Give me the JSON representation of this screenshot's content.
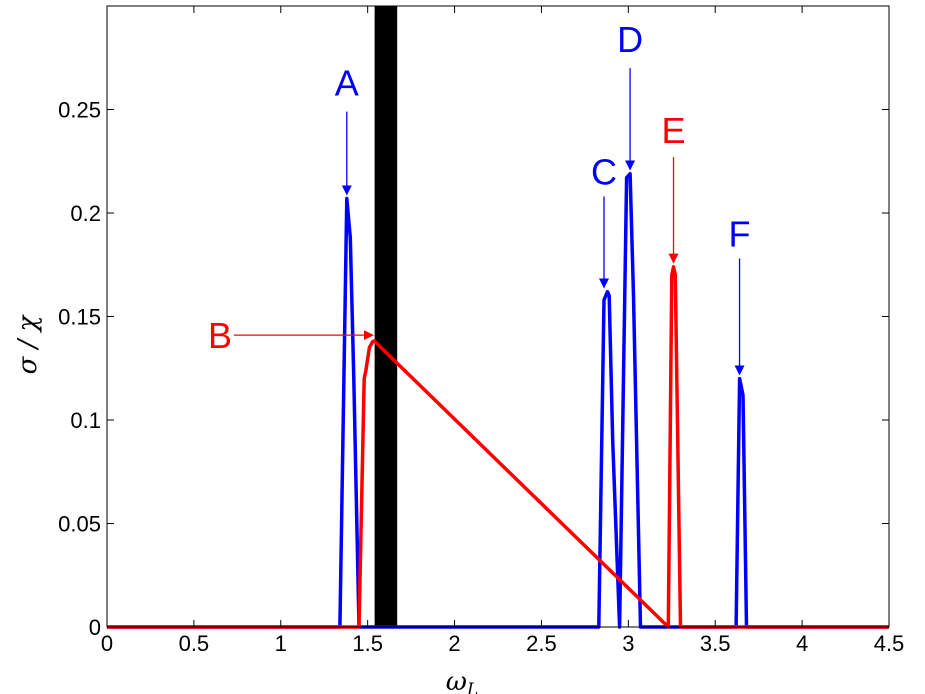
{
  "chart_data": {
    "type": "line",
    "title": "",
    "xlabel": {
      "main": "ω",
      "sub": "L"
    },
    "ylabel": "σ / χ",
    "xlim": [
      0,
      4.5
    ],
    "ylim": [
      0,
      0.3
    ],
    "xticks": [
      0,
      0.5,
      1,
      1.5,
      2,
      2.5,
      3,
      3.5,
      4,
      4.5
    ],
    "xtick_labels": [
      "0",
      "0.5",
      "1",
      "1.5",
      "2",
      "2.5",
      "3",
      "3.5",
      "4",
      "4.5"
    ],
    "yticks": [
      0,
      0.05,
      0.1,
      0.15,
      0.2,
      0.25
    ],
    "ytick_labels": [
      "0",
      "0.05",
      "0.1",
      "0.15",
      "0.2",
      "0.25"
    ],
    "grid": false,
    "band": {
      "x0": 1.54,
      "x1": 1.67,
      "color": "#000000"
    },
    "series": [
      {
        "color": "#0000ff",
        "x": [
          0,
          1.34,
          1.38,
          1.4,
          1.42,
          1.45,
          2.83,
          2.86,
          2.88,
          2.89,
          2.91,
          2.95,
          2.99,
          3.01,
          3.03,
          3.07,
          3.62,
          3.64,
          3.66,
          3.68,
          4.5
        ],
        "y": [
          0,
          0,
          0.207,
          0.188,
          0.12,
          0,
          0,
          0.158,
          0.162,
          0.16,
          0.09,
          0,
          0.217,
          0.219,
          0.16,
          0,
          0,
          0.12,
          0.112,
          0,
          0
        ]
      },
      {
        "color": "#ff0000",
        "x": [
          0,
          1.45,
          1.48,
          1.49,
          1.51,
          1.53,
          1.54,
          3.23,
          3.25,
          3.26,
          3.27,
          3.3,
          4.5
        ],
        "y": [
          0,
          0,
          0.12,
          0.124,
          0.135,
          0.138,
          0.138,
          0,
          0.17,
          0.174,
          0.17,
          0,
          0
        ]
      }
    ],
    "annotations": [
      {
        "label": "A",
        "color": "#0000ff",
        "text_x": 1.38,
        "text_y": 0.263,
        "start": [
          1.38,
          0.249
        ],
        "end": [
          1.38,
          0.209
        ]
      },
      {
        "label": "B",
        "color": "#ff0000",
        "text_x": 0.65,
        "text_y": 0.141,
        "start": [
          0.73,
          0.141
        ],
        "end": [
          1.53,
          0.141
        ]
      },
      {
        "label": "C",
        "color": "#0000ff",
        "text_x": 2.86,
        "text_y": 0.22,
        "start": [
          2.86,
          0.208
        ],
        "end": [
          2.86,
          0.164
        ]
      },
      {
        "label": "D",
        "color": "#0000ff",
        "text_x": 3.01,
        "text_y": 0.284,
        "start": [
          3.01,
          0.27
        ],
        "end": [
          3.01,
          0.221
        ]
      },
      {
        "label": "E",
        "color": "#ff0000",
        "text_x": 3.26,
        "text_y": 0.24,
        "start": [
          3.26,
          0.227
        ],
        "end": [
          3.26,
          0.176
        ]
      },
      {
        "label": "F",
        "color": "#0000ff",
        "text_x": 3.64,
        "text_y": 0.19,
        "start": [
          3.64,
          0.178
        ],
        "end": [
          3.64,
          0.122
        ]
      }
    ]
  }
}
